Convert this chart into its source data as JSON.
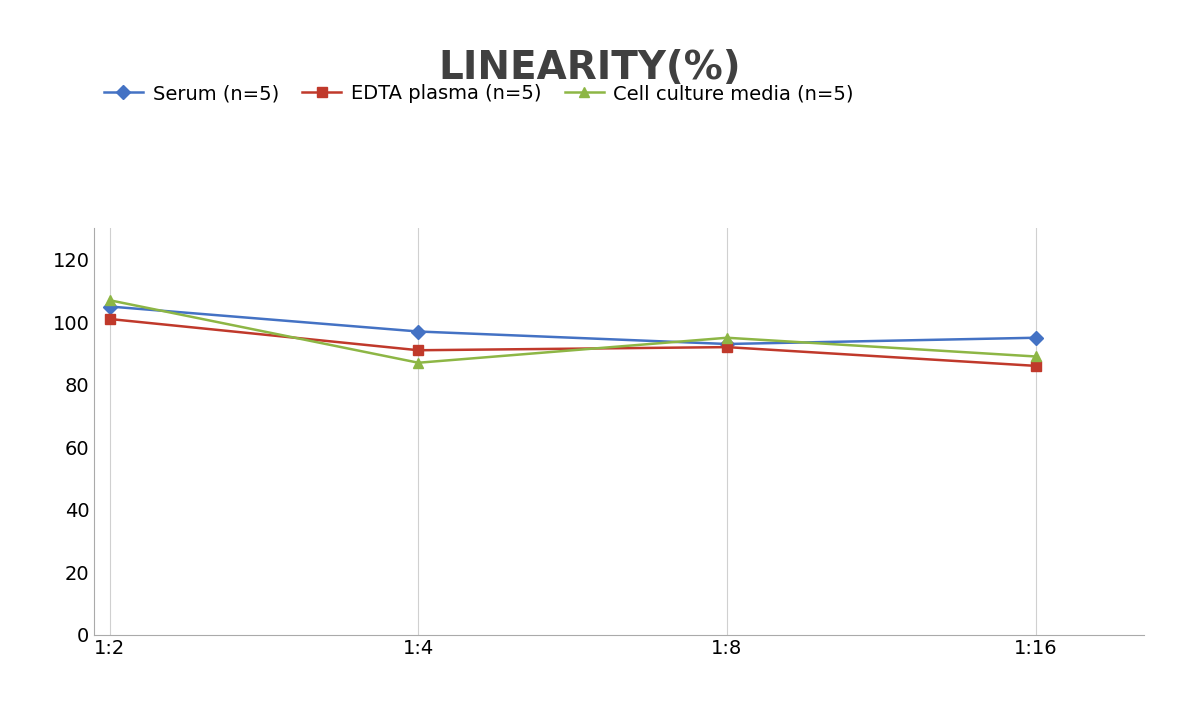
{
  "title": "LINEARITY(%)",
  "title_fontsize": 28,
  "title_fontweight": "bold",
  "title_color": "#404040",
  "x_labels": [
    "1:2",
    "1:4",
    "1:8",
    "1:16"
  ],
  "series": [
    {
      "label": "Serum (n=5)",
      "values": [
        105,
        97,
        93,
        95
      ],
      "color": "#4472C4",
      "marker": "D",
      "linewidth": 1.8
    },
    {
      "label": "EDTA plasma (n=5)",
      "values": [
        101,
        91,
        92,
        86
      ],
      "color": "#C0392B",
      "marker": "s",
      "linewidth": 1.8
    },
    {
      "label": "Cell culture media (n=5)",
      "values": [
        107,
        87,
        95,
        89
      ],
      "color": "#8DB645",
      "marker": "^",
      "linewidth": 1.8
    }
  ],
  "ylim": [
    0,
    130
  ],
  "yticks": [
    0,
    20,
    40,
    60,
    80,
    100,
    120
  ],
  "background_color": "#ffffff",
  "grid_color": "#d0d0d0",
  "legend_fontsize": 14,
  "tick_fontsize": 14
}
